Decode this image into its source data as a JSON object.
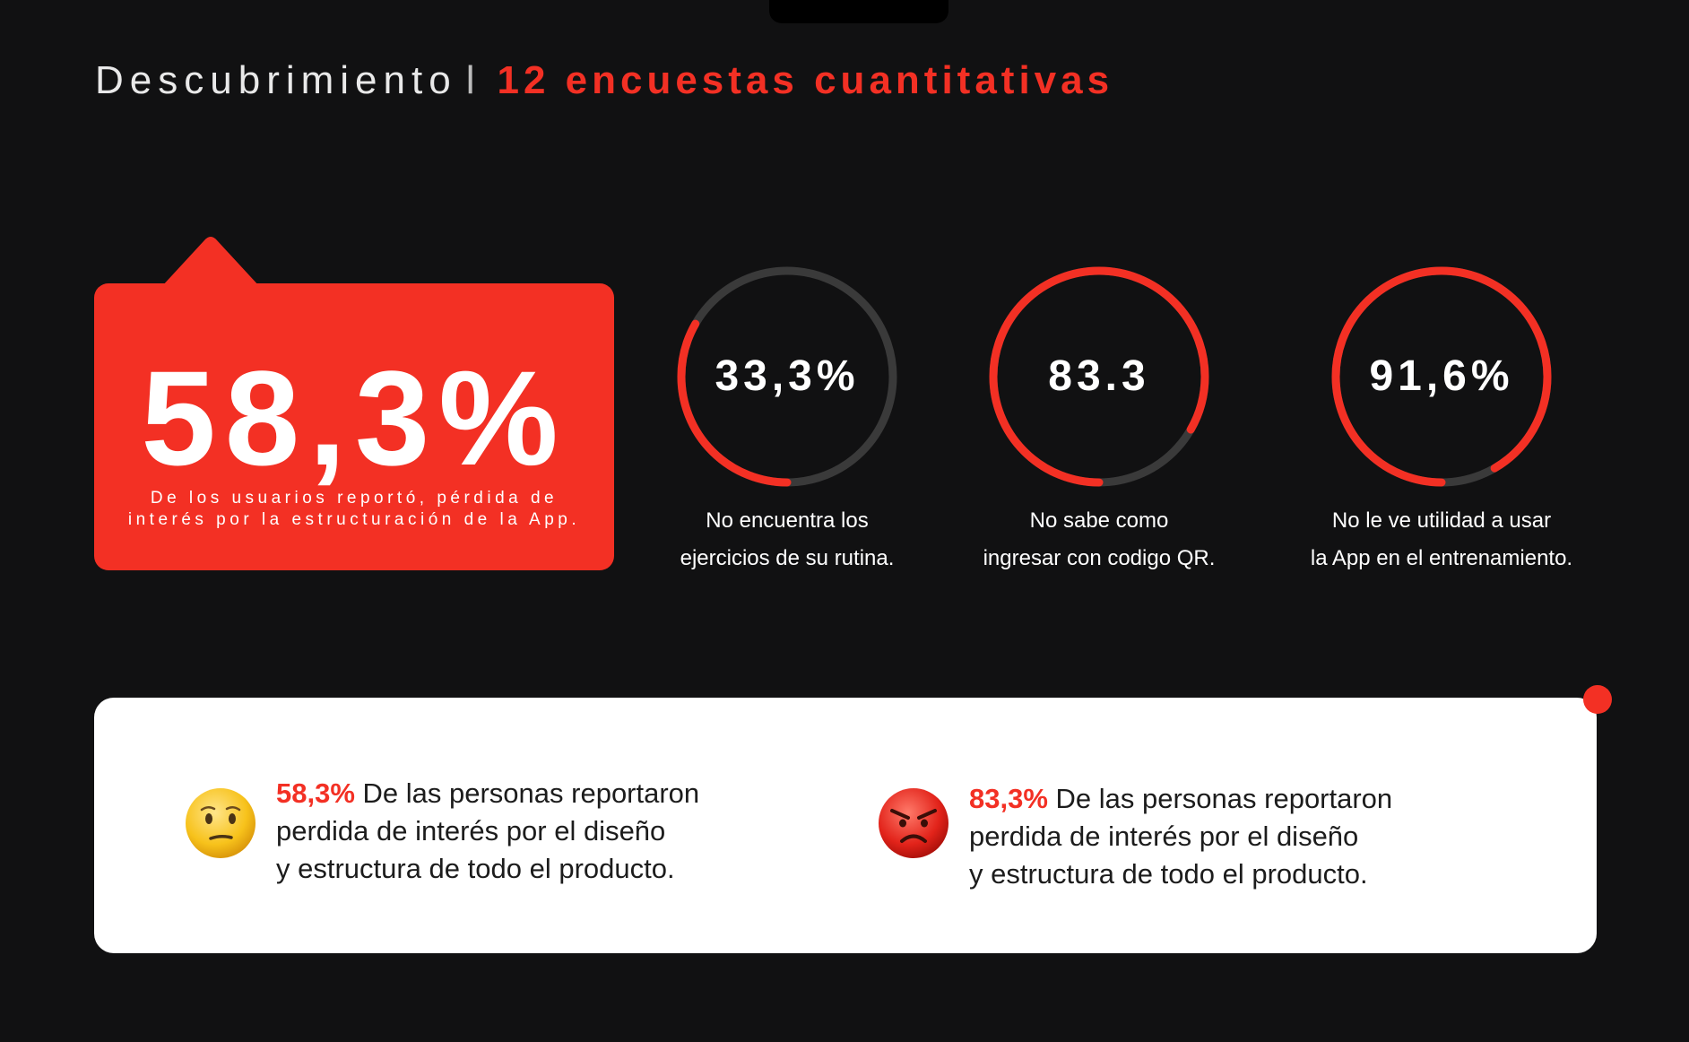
{
  "header": {
    "title": "Descubrimiento",
    "separator": "l",
    "accent": "12 encuestas cuantitativas"
  },
  "highlight": {
    "value": "58,3%",
    "line1": "De los usuarios reportó, pérdida de",
    "line2": "interés por la estructuración de la App."
  },
  "gauges": [
    {
      "value_text": "33,3%",
      "fraction": 0.333,
      "line1": "No encuentra los",
      "line2": "ejercicios de su rutina."
    },
    {
      "value_text": "83.3",
      "fraction": 0.833,
      "line1": "No sabe como",
      "line2": "ingresar con codigo QR."
    },
    {
      "value_text": "91,6%",
      "fraction": 0.916,
      "line1": "No le ve utilidad a usar",
      "line2": "la App en el entrenamiento."
    }
  ],
  "findings": [
    {
      "emoji": "confused-face-icon",
      "percent": "58,3%",
      "line1": " De las personas reportaron",
      "line2": "perdida de interés por el diseño",
      "line3": "y estructura de todo el producto."
    },
    {
      "emoji": "angry-face-icon",
      "percent": "83,3%",
      "line1": " De las personas reportaron",
      "line2": "perdida de interés por el diseño",
      "line3": "y estructura de todo el producto."
    }
  ],
  "colors": {
    "accent": "#f33024",
    "background": "#111112",
    "track": "#3a3a3a",
    "panel": "#ffffff"
  }
}
